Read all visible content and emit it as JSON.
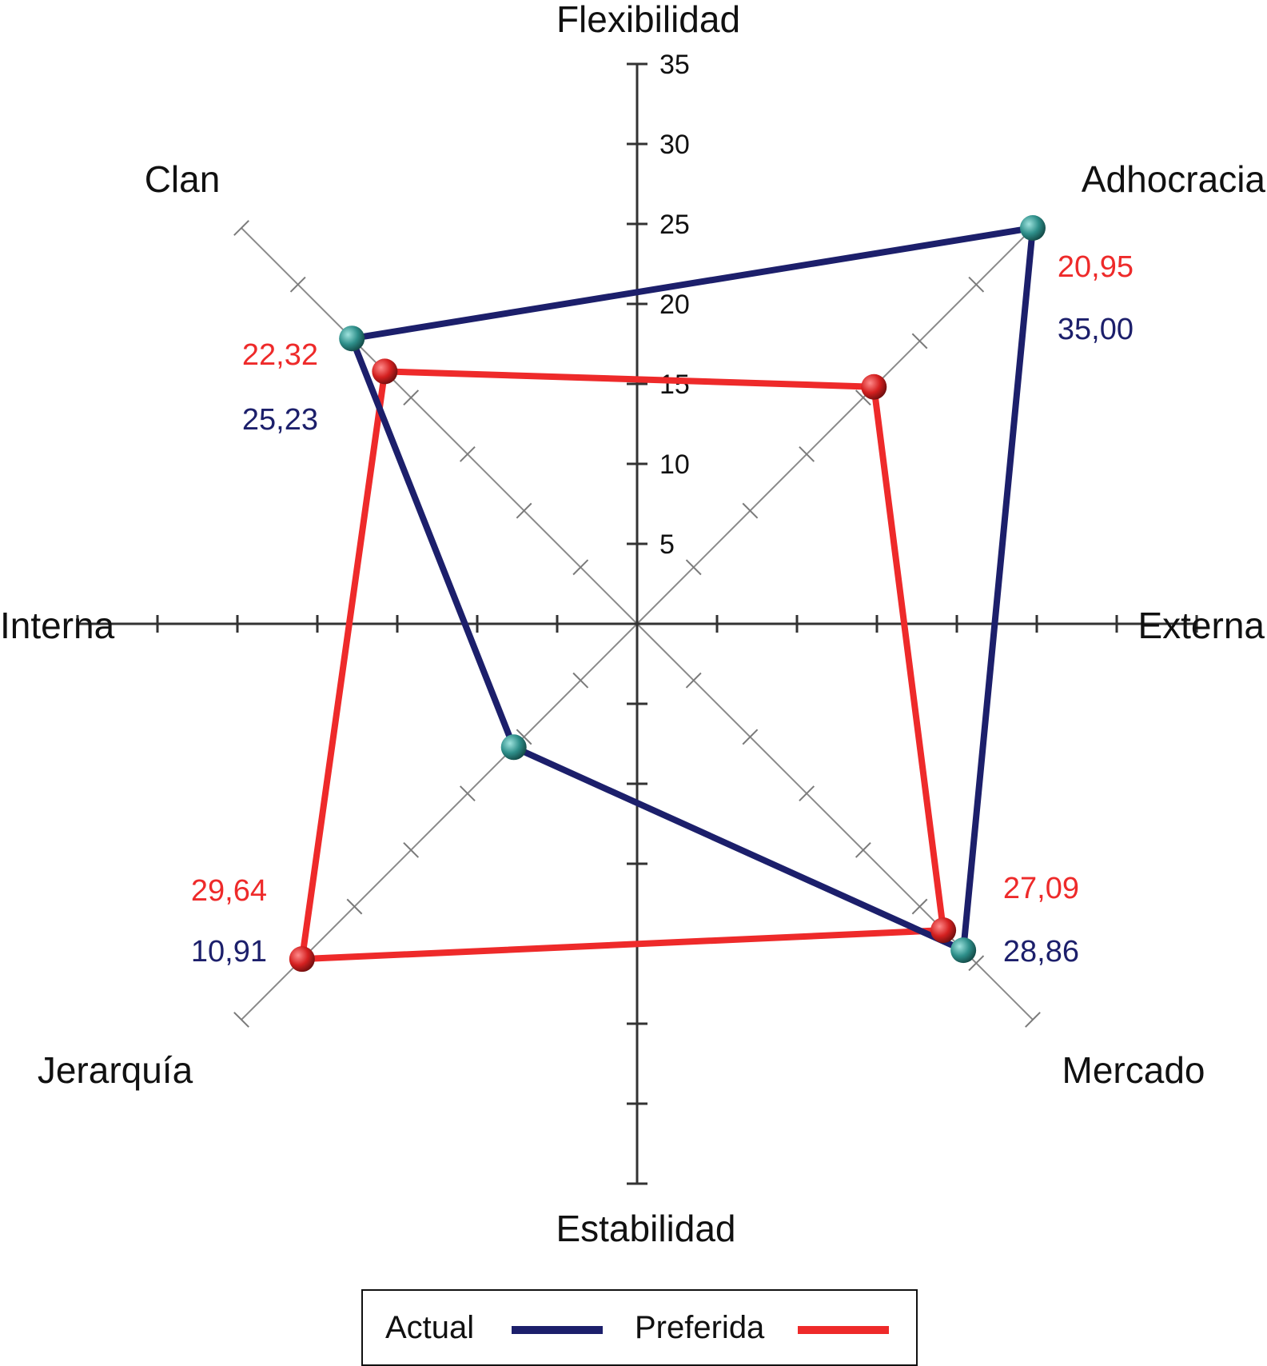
{
  "chart_data": {
    "type": "radar",
    "vertical_axis": {
      "top_label": "Flexibilidad",
      "bottom_label": "Estabilidad",
      "max": 35,
      "step": 5,
      "tick_labels": [
        "5",
        "10",
        "15",
        "20",
        "25",
        "30",
        "35"
      ]
    },
    "horizontal_axis": {
      "left_label": "Interna",
      "right_label": "Externa"
    },
    "categories": [
      "Clan",
      "Adhocracia",
      "Mercado",
      "Jerarquía"
    ],
    "series": [
      {
        "name": "Actual",
        "color": "#1c1f6b",
        "values": [
          25.23,
          35.0,
          28.86,
          10.91
        ],
        "labels": [
          "25,23",
          "35,00",
          "28,86",
          "10,91"
        ]
      },
      {
        "name": "Preferida",
        "color": "#ee2a2a",
        "values": [
          22.32,
          20.95,
          27.09,
          29.64
        ],
        "labels": [
          "22,32",
          "20,95",
          "27,09",
          "29,64"
        ]
      }
    ],
    "legend": {
      "position": "bottom"
    },
    "marker_colors": {
      "Actual": "#2e8f8a",
      "Preferida": "#d42020"
    }
  }
}
